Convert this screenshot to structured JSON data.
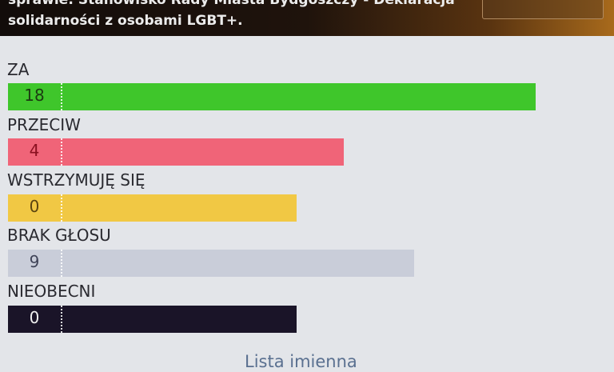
{
  "header": {
    "title": "sprawie: Stanowisko Rady Miasta Bydgoszczy - Deklaracja solidarności z osobami LGBT+."
  },
  "results": [
    {
      "label": "ZA",
      "count": "18",
      "color": "#3fc62b",
      "text_color": "#1c3a12",
      "fill": 0.873
    },
    {
      "label": "PRZECIW",
      "count": "4",
      "color": "#f06478",
      "text_color": "#8a1020",
      "fill": 0.56
    },
    {
      "label": "WSTRZYMUJĘ SIĘ",
      "count": "0",
      "color": "#f1c844",
      "text_color": "#5a4410",
      "fill": 0.483
    },
    {
      "label": "BRAK GŁOSU",
      "count": "9",
      "color": "#c9cdd9",
      "text_color": "#404458",
      "fill": 0.675
    },
    {
      "label": "NIEOBECNI",
      "count": "0",
      "color": "#1a1428",
      "text_color": "#f0f0f0",
      "fill": 0.483
    }
  ],
  "footer": {
    "link": "Lista imienna"
  }
}
